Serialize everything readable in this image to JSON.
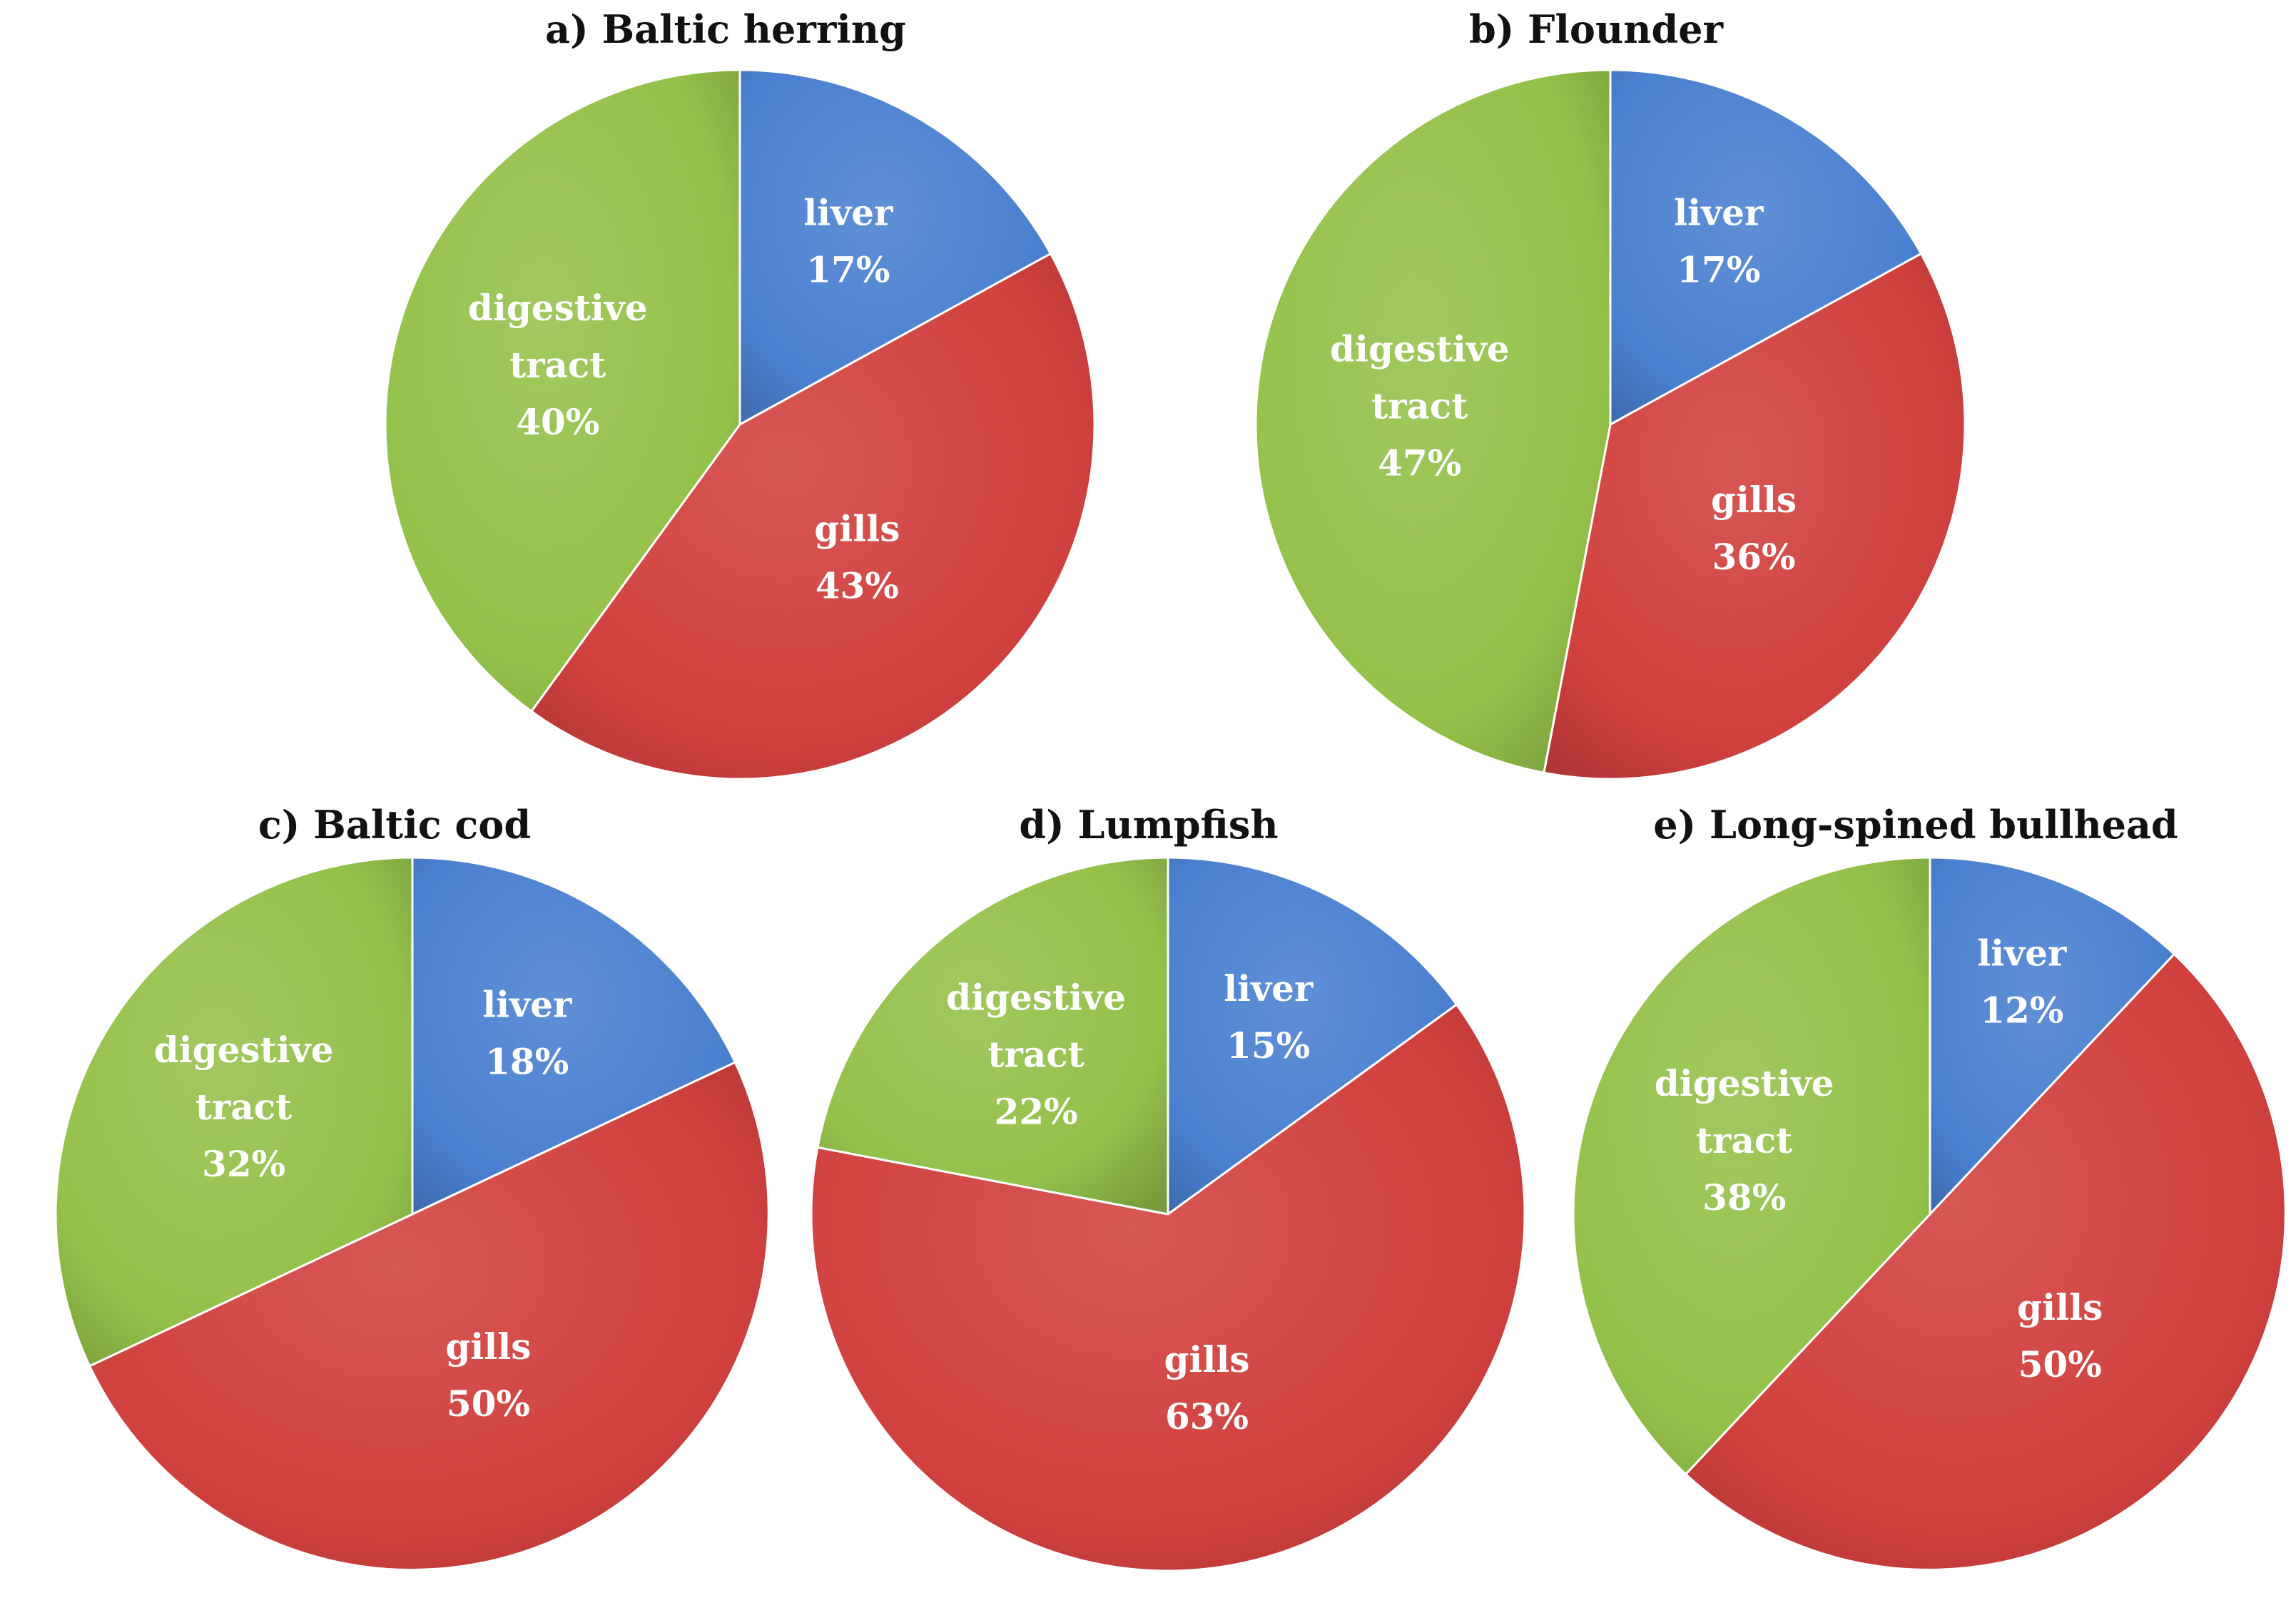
{
  "colors": {
    "liver": "#4A80D0",
    "gills": "#D0403E",
    "digestive_tract": "#94C14A"
  },
  "chart_data": [
    {
      "type": "pie",
      "title": "a) Baltic herring",
      "slices": [
        {
          "key": "liver",
          "label_lines": [
            "liver"
          ],
          "value": 17,
          "value_label": "17%"
        },
        {
          "key": "gills",
          "label_lines": [
            "gills"
          ],
          "value": 43,
          "value_label": "43%"
        },
        {
          "key": "digestive_tract",
          "label_lines": [
            "digestive",
            "tract"
          ],
          "value": 40,
          "value_label": "40%"
        }
      ]
    },
    {
      "type": "pie",
      "title": "b) Flounder",
      "slices": [
        {
          "key": "liver",
          "label_lines": [
            "liver"
          ],
          "value": 17,
          "value_label": "17%"
        },
        {
          "key": "gills",
          "label_lines": [
            "gills"
          ],
          "value": 36,
          "value_label": "36%"
        },
        {
          "key": "digestive_tract",
          "label_lines": [
            "digestive",
            "tract"
          ],
          "value": 47,
          "value_label": "47%"
        }
      ]
    },
    {
      "type": "pie",
      "title": "c) Baltic cod",
      "slices": [
        {
          "key": "liver",
          "label_lines": [
            "liver"
          ],
          "value": 18,
          "value_label": "18%"
        },
        {
          "key": "gills",
          "label_lines": [
            "gills"
          ],
          "value": 50,
          "value_label": "50%"
        },
        {
          "key": "digestive_tract",
          "label_lines": [
            "digestive",
            "tract"
          ],
          "value": 32,
          "value_label": "32%"
        }
      ]
    },
    {
      "type": "pie",
      "title": "d) Lumpfish",
      "slices": [
        {
          "key": "liver",
          "label_lines": [
            "liver"
          ],
          "value": 15,
          "value_label": "15%"
        },
        {
          "key": "gills",
          "label_lines": [
            "gills"
          ],
          "value": 63,
          "value_label": "63%"
        },
        {
          "key": "digestive_tract",
          "label_lines": [
            "digestive",
            "tract"
          ],
          "value": 22,
          "value_label": "22%"
        }
      ]
    },
    {
      "type": "pie",
      "title": "e) Long-spined bullhead",
      "slices": [
        {
          "key": "liver",
          "label_lines": [
            "liver"
          ],
          "value": 12,
          "value_label": "12%"
        },
        {
          "key": "gills",
          "label_lines": [
            "gills"
          ],
          "value": 50,
          "value_label": "50%"
        },
        {
          "key": "digestive_tract",
          "label_lines": [
            "digestive",
            "tract"
          ],
          "value": 38,
          "value_label": "38%"
        }
      ]
    }
  ]
}
